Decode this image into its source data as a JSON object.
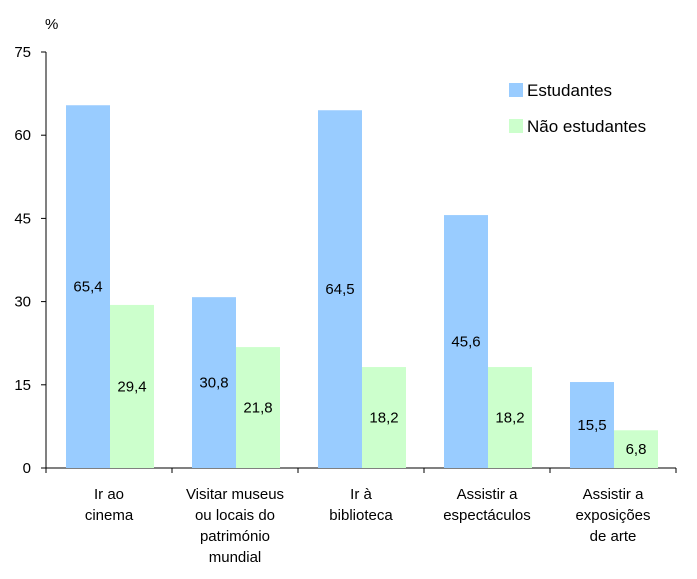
{
  "chart_data": {
    "type": "bar",
    "title": "",
    "xlabel": "",
    "ylabel": "%",
    "ylim": [
      0,
      75
    ],
    "yticks": [
      "0",
      "15",
      "30",
      "45",
      "60",
      "75"
    ],
    "ytick_values": [
      0,
      15,
      30,
      45,
      60,
      75
    ],
    "grid": false,
    "legend_position": "top-right",
    "categories": [
      [
        "Ir ao",
        "cinema"
      ],
      [
        "Visitar museus",
        "ou locais do",
        "património",
        "mundial"
      ],
      [
        "Ir à",
        "biblioteca"
      ],
      [
        "Assistir a",
        "espectáculos"
      ],
      [
        "Assistir a",
        "exposições",
        "de arte"
      ]
    ],
    "series": [
      {
        "name": "Estudantes",
        "color": "#99ccff",
        "values": [
          65.4,
          30.8,
          64.5,
          45.6,
          15.5
        ],
        "labels": [
          "65,4",
          "30,8",
          "64,5",
          "45,6",
          "15,5"
        ]
      },
      {
        "name": "Não estudantes",
        "color": "#ccffcc",
        "values": [
          29.4,
          21.8,
          18.2,
          18.2,
          6.8
        ],
        "labels": [
          "29,4",
          "21,8",
          "18,2",
          "18,2",
          "6,8"
        ]
      }
    ]
  }
}
